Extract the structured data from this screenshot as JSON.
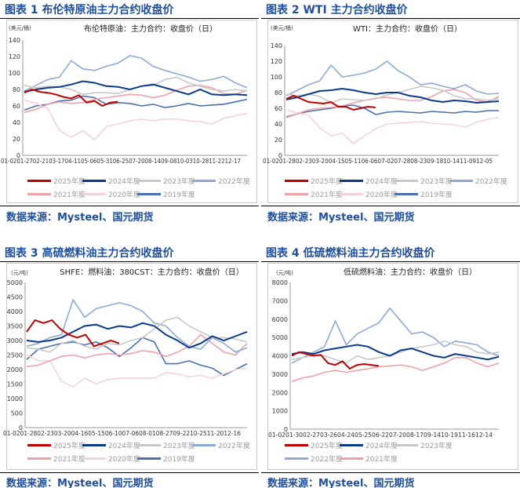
{
  "source_text": "数据来源：Mysteel、国元期货",
  "colors": {
    "2025年度": "#c00000",
    "2024年度": "#0b3a8a",
    "2023年度": "#c8c8c8",
    "2022年度": "#8ea9d4",
    "2021年度": "#f0a0a8",
    "2020年度": "#f2d4d6",
    "2019年度": "#4a6fb0"
  },
  "chart_data": [
    {
      "type": "line",
      "figure_title": "图表 1 布伦特原油主力合约收盘价",
      "title": "布伦特原油：主力合约：收盘价（日）",
      "ylabel": "(美元/桶)",
      "ylim": [
        0,
        140
      ],
      "yticks": [
        0,
        20,
        40,
        60,
        80,
        100,
        120,
        140
      ],
      "xticks": [
        "01-02",
        "01-27",
        "02-21",
        "03-17",
        "04-11",
        "05-06",
        "05-31",
        "06-25",
        "07-20",
        "08-14",
        "09-08",
        "10-03",
        "10-28",
        "11-22",
        "12-17"
      ],
      "series": [
        {
          "name": "2025年度",
          "end": 0.42,
          "values": [
            76,
            80,
            77,
            76,
            74,
            71,
            69,
            73,
            64,
            66,
            60,
            64,
            65
          ]
        },
        {
          "name": "2024年度",
          "end": 1,
          "values": [
            77,
            80,
            82,
            83,
            86,
            90,
            88,
            84,
            83,
            80,
            84,
            86,
            82,
            78,
            74,
            80,
            74,
            73,
            74,
            73
          ]
        },
        {
          "name": "2023年度",
          "end": 1,
          "values": [
            85,
            82,
            84,
            83,
            80,
            74,
            76,
            76,
            75,
            80,
            84,
            85,
            92,
            95,
            88,
            84,
            80,
            78,
            80,
            78
          ]
        },
        {
          "name": "2022年度",
          "end": 1,
          "values": [
            78,
            85,
            92,
            95,
            115,
            105,
            103,
            108,
            112,
            121,
            118,
            108,
            103,
            99,
            95,
            90,
            92,
            96,
            88,
            82
          ]
        },
        {
          "name": "2021年度",
          "end": 1,
          "values": [
            52,
            56,
            62,
            65,
            63,
            64,
            68,
            70,
            72,
            74,
            73,
            70,
            73,
            79,
            84,
            85,
            82,
            75,
            74,
            79
          ]
        },
        {
          "name": "2020年度",
          "end": 1,
          "values": [
            67,
            63,
            57,
            30,
            22,
            30,
            19,
            35,
            38,
            42,
            44,
            42,
            44,
            44,
            42,
            41,
            38,
            45,
            48,
            51
          ]
        },
        {
          "name": "2019年度",
          "end": 1,
          "values": [
            55,
            60,
            62,
            66,
            67,
            72,
            70,
            62,
            64,
            63,
            60,
            62,
            58,
            60,
            63,
            60,
            61,
            62,
            65,
            68
          ]
        }
      ]
    },
    {
      "type": "line",
      "figure_title": "图表 2 WTI 主力合约收盘价",
      "title": "WTI：主力合约：收盘价（日）",
      "ylabel": "(美元/桶)",
      "ylim": [
        0,
        140
      ],
      "yticks": [
        0,
        20,
        40,
        60,
        80,
        100,
        120,
        140
      ],
      "xticks": [
        "01-02",
        "01-28",
        "02-23",
        "03-20",
        "04-15",
        "05-11",
        "06-06",
        "07-02",
        "07-28",
        "08-23",
        "09-18",
        "10-14",
        "11-09",
        "12-05"
      ],
      "series": [
        {
          "name": "2025年度",
          "end": 0.42,
          "values": [
            72,
            76,
            72,
            68,
            67,
            66,
            68,
            62,
            62,
            58,
            60,
            62,
            61
          ]
        },
        {
          "name": "2024年度",
          "end": 1,
          "values": [
            71,
            74,
            78,
            82,
            83,
            85,
            83,
            80,
            78,
            80,
            80,
            76,
            74,
            70,
            68,
            70,
            69,
            67,
            68,
            69
          ]
        },
        {
          "name": "2023年度",
          "end": 1,
          "values": [
            78,
            76,
            78,
            75,
            67,
            72,
            71,
            70,
            72,
            77,
            80,
            84,
            88,
            86,
            83,
            76,
            72,
            72,
            70,
            72
          ]
        },
        {
          "name": "2022年度",
          "end": 1,
          "values": [
            76,
            83,
            90,
            95,
            115,
            100,
            102,
            105,
            110,
            120,
            108,
            100,
            90,
            92,
            88,
            85,
            90,
            82,
            78,
            79
          ]
        },
        {
          "name": "2021年度",
          "end": 1,
          "values": [
            48,
            53,
            58,
            60,
            61,
            63,
            67,
            70,
            73,
            74,
            72,
            70,
            70,
            75,
            82,
            84,
            80,
            70,
            68,
            75
          ]
        },
        {
          "name": "2020年度",
          "end": 1,
          "values": [
            58,
            54,
            51,
            35,
            25,
            28,
            15,
            25,
            34,
            40,
            41,
            42,
            43,
            41,
            40,
            39,
            36,
            42,
            46,
            48
          ]
        },
        {
          "name": "2019年度",
          "end": 1,
          "values": [
            49,
            53,
            56,
            58,
            60,
            63,
            64,
            60,
            52,
            55,
            56,
            55,
            54,
            56,
            55,
            54,
            56,
            55,
            57,
            57
          ]
        }
      ]
    },
    {
      "type": "line",
      "figure_title": "图表 3 高硫燃料油主力合约收盘价",
      "title": "SHFE：燃料油：380CST：主力合约：收盘价（日）",
      "ylabel": "(元/吨)",
      "ylim": [
        0,
        5000
      ],
      "yticks": [
        0,
        500,
        1000,
        1500,
        2000,
        2500,
        3000,
        3500,
        4000,
        4500,
        5000
      ],
      "xticks": [
        "01-02",
        "01-28",
        "02-23",
        "03-20",
        "04-16",
        "05-15",
        "06-10",
        "07-06",
        "08-01",
        "08-27",
        "09-22",
        "10-25",
        "11-20",
        "12-16"
      ],
      "series": [
        {
          "name": "2025年度",
          "end": 0.42,
          "values": [
            3300,
            3700,
            3600,
            3700,
            3400,
            3200,
            3100,
            3200,
            2800,
            2900,
            3000,
            2900
          ]
        },
        {
          "name": "2024年度",
          "end": 1,
          "values": [
            3000,
            2950,
            3000,
            3100,
            3300,
            3500,
            3550,
            3400,
            3500,
            3450,
            3600,
            3500,
            3200,
            3000,
            2750,
            2900,
            3150,
            3000,
            3150,
            3300
          ]
        },
        {
          "name": "2023年度",
          "end": 1,
          "values": [
            2750,
            2700,
            2600,
            2900,
            3000,
            2800,
            2700,
            2900,
            2850,
            3000,
            3100,
            3400,
            3700,
            3800,
            3500,
            3300,
            3100,
            3100,
            3050,
            2950
          ]
        },
        {
          "name": "2022年度",
          "end": 1,
          "values": [
            2800,
            2900,
            3100,
            3200,
            4400,
            3800,
            4100,
            4200,
            4300,
            4200,
            4000,
            3600,
            3500,
            3100,
            2800,
            2700,
            3100,
            2900,
            2600,
            2750
          ]
        },
        {
          "name": "2021年度",
          "end": 1,
          "values": [
            2100,
            2150,
            2300,
            2450,
            2500,
            2400,
            2500,
            2550,
            2500,
            2550,
            2650,
            2600,
            2450,
            2600,
            2800,
            3200,
            2900,
            2600,
            2500,
            2900
          ]
        },
        {
          "name": "2020年度",
          "end": 1,
          "values": [
            2500,
            2300,
            2300,
            1600,
            1400,
            1700,
            1500,
            1650,
            1700,
            1700,
            1700,
            1700,
            1900,
            1850,
            1750,
            1800,
            1700,
            1850,
            2000,
            2050
          ]
        },
        {
          "name": "2019年度",
          "end": 1,
          "values": [
            2350,
            2700,
            2800,
            2900,
            2950,
            2850,
            2950,
            2750,
            2450,
            2750,
            3100,
            2950,
            2200,
            2200,
            2300,
            2150,
            2050,
            1800,
            2000,
            2200
          ]
        }
      ]
    },
    {
      "type": "line",
      "figure_title": "图表 4 低硫燃料油主力合约收盘价",
      "title": "低硫燃料油：主力合约：收盘价（日）",
      "ylabel": "(元/吨)",
      "ylim": [
        0,
        8000
      ],
      "yticks": [
        0,
        1000,
        2000,
        3000,
        4000,
        5000,
        6000,
        7000,
        8000
      ],
      "xticks": [
        "01-02",
        "01-30",
        "02-27",
        "03-26",
        "04-24",
        "05-25",
        "06-22",
        "07-20",
        "08-17",
        "09-14",
        "10-19",
        "11-16",
        "12-14"
      ],
      "series": [
        {
          "name": "2025年度",
          "end": 0.42,
          "values": [
            4000,
            4200,
            4100,
            4000,
            4050,
            3600,
            3500,
            3700,
            3300,
            3500,
            3550,
            3500,
            3450
          ]
        },
        {
          "name": "2024年度",
          "end": 1,
          "values": [
            4100,
            4200,
            4100,
            4300,
            4400,
            4500,
            4600,
            4500,
            4200,
            4000,
            4300,
            4400,
            4200,
            4000,
            3900,
            4100,
            4000,
            3900,
            3800,
            3950
          ]
        },
        {
          "name": "2023年度",
          "end": 1,
          "values": [
            3800,
            3900,
            4000,
            4000,
            3800,
            3600,
            4000,
            3800,
            3900,
            4000,
            4200,
            4400,
            4500,
            4600,
            4800,
            4600,
            4500,
            4200,
            4100,
            4200
          ]
        },
        {
          "name": "2022年度",
          "end": 1,
          "values": [
            3600,
            3900,
            4200,
            4500,
            5900,
            4600,
            5200,
            5500,
            5800,
            6600,
            5900,
            5200,
            5300,
            5000,
            4500,
            4800,
            4700,
            4600,
            4200,
            4000
          ]
        },
        {
          "name": "2021年度",
          "end": 1,
          "values": [
            2600,
            2800,
            2900,
            3100,
            3200,
            3100,
            3200,
            3300,
            3400,
            3450,
            3500,
            3400,
            3200,
            3400,
            3600,
            3900,
            3900,
            3600,
            3400,
            3600
          ]
        }
      ]
    }
  ]
}
